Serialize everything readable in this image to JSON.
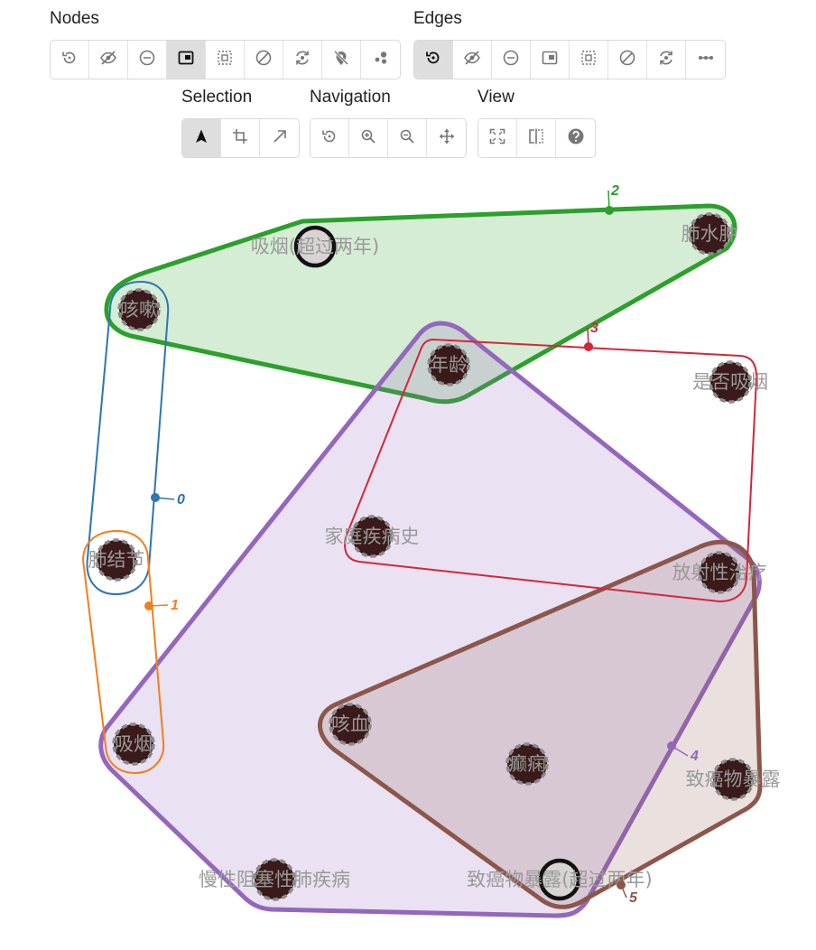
{
  "toolbar": {
    "nodes_label": "Nodes",
    "edges_label": "Edges",
    "selection_label": "Selection",
    "navigation_label": "Navigation",
    "view_label": "View",
    "nodes_buttons": [
      "reset-icon",
      "hide-icon",
      "remove-icon",
      "collapse-icon",
      "select-all-icon",
      "ban-icon",
      "refresh-icon",
      "unpin-icon",
      "cluster-icon"
    ],
    "edges_buttons": [
      "reset-icon",
      "hide-icon",
      "remove-icon",
      "collapse-icon",
      "select-all-icon",
      "ban-icon",
      "refresh-icon",
      "connect-icon"
    ],
    "selection_buttons": [
      "pointer-icon",
      "crop-icon",
      "arrow-icon"
    ],
    "navigation_buttons": [
      "reset-icon",
      "zoom-in-icon",
      "zoom-out-icon",
      "pan-icon"
    ],
    "view_buttons": [
      "fit-icon",
      "split-icon",
      "help-icon"
    ],
    "active": [
      "nodes:collapse-icon",
      "edges:reset-icon",
      "selection:pointer-icon"
    ]
  },
  "hypergraph": {
    "nodes": [
      {
        "id": "n1",
        "label": "吸烟(超过两年)",
        "selected": true
      },
      {
        "id": "n2",
        "label": "肺水肿"
      },
      {
        "id": "n3",
        "label": "咳嗽"
      },
      {
        "id": "n4",
        "label": "年龄"
      },
      {
        "id": "n5",
        "label": "是否吸烟"
      },
      {
        "id": "n6",
        "label": "家庭疾病史"
      },
      {
        "id": "n7",
        "label": "肺结节"
      },
      {
        "id": "n8",
        "label": "放射性治疗"
      },
      {
        "id": "n9",
        "label": "咳血"
      },
      {
        "id": "n10",
        "label": "吸烟"
      },
      {
        "id": "n11",
        "label": "癫痫"
      },
      {
        "id": "n12",
        "label": "致癌物暴露"
      },
      {
        "id": "n13",
        "label": "慢性阻塞性肺疾病"
      },
      {
        "id": "n14",
        "label": "致癌物暴露(超过两年)",
        "selected": true
      }
    ],
    "edges": [
      {
        "id": "0",
        "label": "0",
        "color": "#2e75b6",
        "members": [
          "n3",
          "n7"
        ]
      },
      {
        "id": "1",
        "label": "1",
        "color": "#f07f1e",
        "members": [
          "n7",
          "n10"
        ]
      },
      {
        "id": "2",
        "label": "2",
        "color": "#2ca02c",
        "members": [
          "n3",
          "n1",
          "n2",
          "n4"
        ]
      },
      {
        "id": "3",
        "label": "3",
        "color": "#d0283a",
        "members": [
          "n4",
          "n5",
          "n6",
          "n8"
        ]
      },
      {
        "id": "4",
        "label": "4",
        "color": "#9467bd",
        "members": [
          "n4",
          "n8",
          "n10",
          "n13",
          "n14"
        ]
      },
      {
        "id": "5",
        "label": "5",
        "color": "#8c564b",
        "members": [
          "n8",
          "n9",
          "n11",
          "n12",
          "n14"
        ]
      }
    ]
  }
}
